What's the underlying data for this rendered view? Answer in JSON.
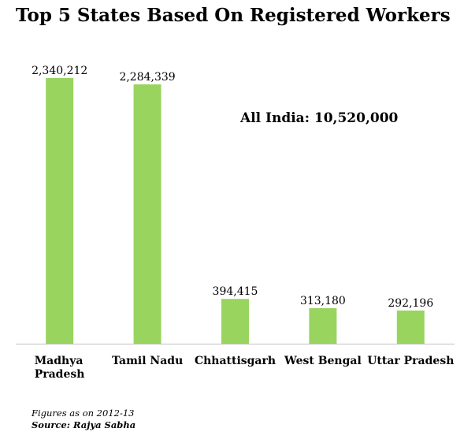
{
  "chart_data": {
    "type": "bar",
    "title": "Top 5 States Based On Registered Workers",
    "categories": [
      [
        "Madhya",
        "Pradesh"
      ],
      [
        "Tamil Nadu"
      ],
      [
        "Chhattisgarh"
      ],
      [
        "West Bengal"
      ],
      [
        "Uttar Pradesh"
      ]
    ],
    "values": [
      2340212,
      2284339,
      394415,
      313180,
      292196
    ],
    "data_labels": [
      "2,340,212",
      "2,284,339",
      "394,415",
      "313,180",
      "292,196"
    ],
    "xlabel": "",
    "ylabel": "",
    "ylim": [
      0,
      2340212
    ],
    "grid": false,
    "legend": "none",
    "annotation": "All India: 10,520,000",
    "bar_color": "#99d45f",
    "axis_color": "#bfbfbf"
  },
  "footnote": {
    "note": "Figures as on 2012-13",
    "source": "Source: Rajya Sabha"
  }
}
